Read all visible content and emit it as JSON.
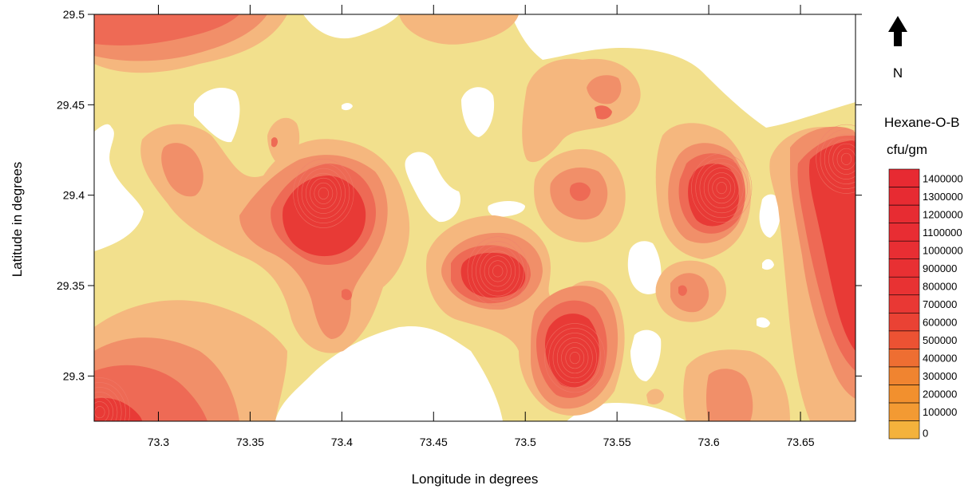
{
  "chart_data": {
    "type": "contour",
    "xlabel": "Longitude in degrees",
    "ylabel": "Latitude in degrees",
    "xlim": [
      73.265,
      73.68
    ],
    "ylim": [
      29.275,
      29.5
    ],
    "x_ticks": [
      "73.3",
      "73.35",
      "73.4",
      "73.45",
      "73.5",
      "73.55",
      "73.6",
      "73.65"
    ],
    "y_ticks": [
      "29.3",
      "29.35",
      "29.4",
      "29.45",
      "29.5"
    ],
    "x_tick_values": [
      73.3,
      73.35,
      73.4,
      73.45,
      73.5,
      73.55,
      73.6,
      73.65
    ],
    "y_tick_values": [
      29.3,
      29.35,
      29.4,
      29.45,
      29.5
    ],
    "north_label": "N",
    "legend": {
      "title": "Hexane-O-B",
      "unit": "cfu/gm",
      "levels": [
        "0",
        "100000",
        "200000",
        "300000",
        "400000",
        "500000",
        "600000",
        "700000",
        "800000",
        "900000",
        "1000000",
        "1100000",
        "1200000",
        "1300000",
        "1400000"
      ],
      "colors": [
        "#f4b23c",
        "#f39a33",
        "#f2902e",
        "#f08430",
        "#ee6e32",
        "#ec5233",
        "#ea4234",
        "#e93834",
        "#e83233",
        "#e83033",
        "#e82e33",
        "#e82d33",
        "#e72c32",
        "#e72b32",
        "#e72a32"
      ]
    },
    "fill_colors": {
      "background": "#ffffff",
      "low": "#f2e08d",
      "level1": "#f5b77e",
      "level2": "#f18f69",
      "level3": "#ee6a55",
      "high": "#e83a36"
    },
    "hotspots": [
      {
        "lon": 73.39,
        "lat": 29.401,
        "level": "high"
      },
      {
        "lon": 73.485,
        "lat": 29.358,
        "level": "high"
      },
      {
        "lon": 73.527,
        "lat": 29.31,
        "level": "high"
      },
      {
        "lon": 73.607,
        "lat": 29.404,
        "level": "high"
      },
      {
        "lon": 73.675,
        "lat": 29.42,
        "level": "high"
      },
      {
        "lon": 73.268,
        "lat": 29.28,
        "level": "high"
      },
      {
        "lon": 73.525,
        "lat": 29.404,
        "level": "level3"
      },
      {
        "lon": 73.3,
        "lat": 29.418,
        "level": "level2"
      },
      {
        "lon": 73.587,
        "lat": 29.344,
        "level": "level2"
      },
      {
        "lon": 73.54,
        "lat": 29.46,
        "level": "level3"
      }
    ]
  }
}
